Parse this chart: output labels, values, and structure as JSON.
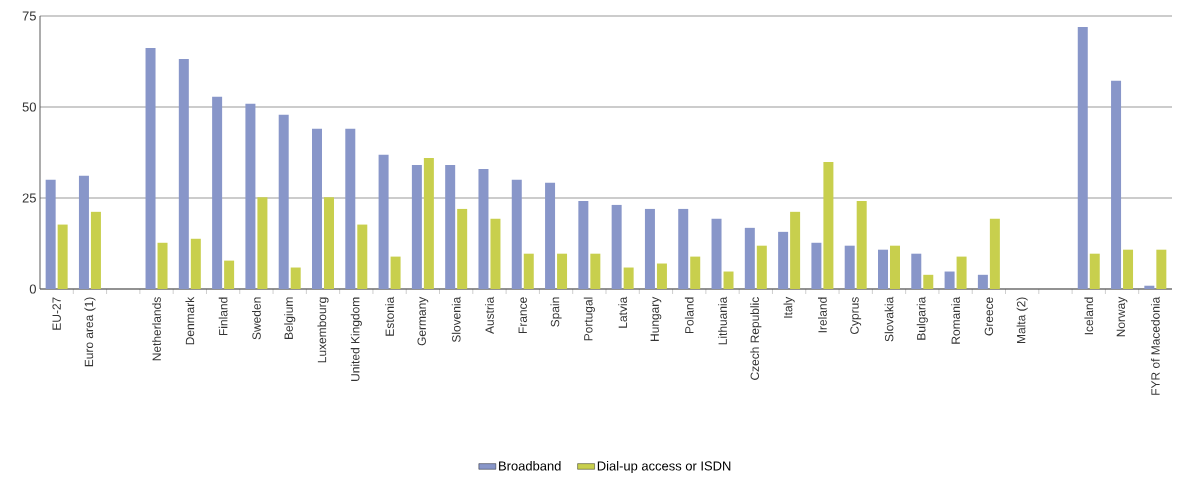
{
  "chart_data": {
    "type": "bar",
    "categories": [
      "EU-27",
      "Euro area (1)",
      null,
      "Netherlands",
      "Denmark",
      "Finland",
      "Sweden",
      "Belgium",
      "Luxembourg",
      "United Kingdom",
      "Estonia",
      "Germany",
      "Slovenia",
      "Austria",
      "France",
      "Spain",
      "Portugal",
      "Latvia",
      "Hungary",
      "Poland",
      "Lithuania",
      "Czech Republic",
      "Italy",
      "Ireland",
      "Cyprus",
      "Slovakia",
      "Bulgaria",
      "Romania",
      "Greece",
      "Malta (2)",
      null,
      "Iceland",
      "Norway",
      "FYR of Macedonia"
    ],
    "series": [
      {
        "name": "Broadband",
        "color": "#8896c9",
        "values": [
          30.0,
          31.1,
          null,
          66.2,
          63.2,
          52.8,
          50.9,
          47.9,
          44.0,
          44.0,
          36.9,
          34.1,
          34.1,
          33.0,
          30.0,
          29.2,
          24.2,
          23.1,
          22.0,
          22.0,
          19.3,
          16.8,
          15.7,
          12.7,
          11.9,
          10.8,
          9.7,
          4.8,
          3.9,
          null,
          null,
          72.0,
          57.2,
          0.9
        ]
      },
      {
        "name": "Dial-up access or ISDN",
        "color": "#c8cf4d",
        "values": [
          17.7,
          21.2,
          null,
          12.7,
          13.8,
          7.8,
          25.2,
          5.9,
          25.2,
          17.7,
          8.9,
          36.0,
          22.0,
          19.3,
          9.7,
          9.7,
          9.7,
          5.9,
          7.0,
          8.9,
          4.8,
          11.9,
          21.2,
          34.9,
          24.2,
          11.9,
          3.9,
          8.9,
          19.3,
          null,
          null,
          9.7,
          10.8,
          10.8
        ]
      }
    ],
    "ylim": [
      0,
      75
    ],
    "yticks": [
      0,
      25,
      50,
      75
    ],
    "grid": "y",
    "legend": "bottom"
  }
}
